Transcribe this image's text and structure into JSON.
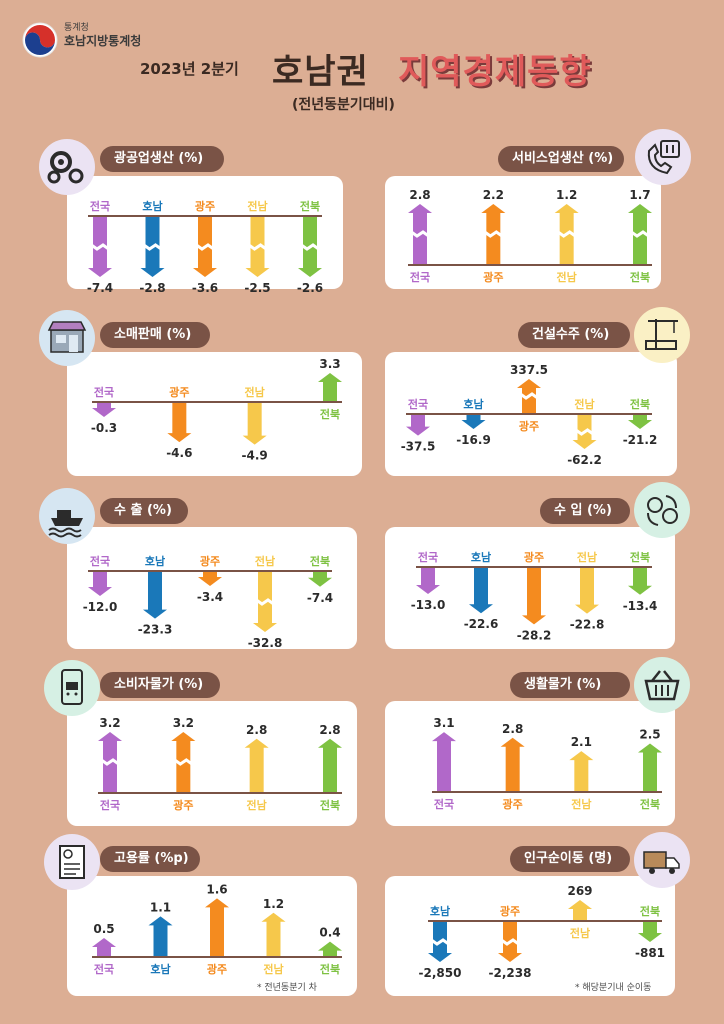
{
  "header": {
    "agency_top": "통계청",
    "agency_name": "호남지방통계청",
    "year_label": "2023년 2분기",
    "title_region": "호남권",
    "title_rest": "지역경제동향",
    "subtitle": "(전년동분기대비)"
  },
  "colors": {
    "전국": "#b168c9",
    "호남": "#1a78b9",
    "광주": "#f48b1f",
    "전남": "#f6c84b",
    "전북": "#7ec242"
  },
  "charts": [
    {
      "id": "mining",
      "title": "광공업생산 (%)",
      "icon": "gears-icon",
      "chart_data": {
        "type": "bar",
        "categories": [
          "전국",
          "호남",
          "광주",
          "전남",
          "전북"
        ],
        "values": [
          -7.4,
          -2.8,
          -3.6,
          -2.5,
          -2.6
        ],
        "labels": [
          "-7.4",
          "-2.8",
          "-3.6",
          "-2.5",
          "-2.6"
        ],
        "title": "광공업생산 (%)"
      }
    },
    {
      "id": "service",
      "title": "서비스업생산 (%)",
      "icon": "phone-restaurant-icon",
      "chart_data": {
        "type": "bar",
        "categories": [
          "전국",
          "광주",
          "전남",
          "전북"
        ],
        "values": [
          2.8,
          2.2,
          1.2,
          1.7
        ],
        "labels": [
          "2.8",
          "2.2",
          "1.2",
          "1.7"
        ],
        "title": "서비스업생산 (%)"
      }
    },
    {
      "id": "retail",
      "title": "소매판매 (%)",
      "icon": "store-icon",
      "chart_data": {
        "type": "bar",
        "categories": [
          "전국",
          "광주",
          "전남",
          "전북"
        ],
        "values": [
          -0.3,
          -4.6,
          -4.9,
          3.3
        ],
        "labels": [
          "-0.3",
          "-4.6",
          "-4.9",
          "3.3"
        ],
        "title": "소매판매 (%)"
      }
    },
    {
      "id": "construction",
      "title": "건설수주 (%)",
      "icon": "crane-icon",
      "chart_data": {
        "type": "bar",
        "categories": [
          "전국",
          "호남",
          "광주",
          "전남",
          "전북"
        ],
        "values": [
          -37.5,
          -16.9,
          337.5,
          -62.2,
          -21.2
        ],
        "labels": [
          "-37.5",
          "-16.9",
          "337.5",
          "-62.2",
          "-21.2"
        ],
        "title": "건설수주 (%)"
      }
    },
    {
      "id": "export",
      "title": "수 출 (%)",
      "icon": "ship-icon",
      "chart_data": {
        "type": "bar",
        "categories": [
          "전국",
          "호남",
          "광주",
          "전남",
          "전북"
        ],
        "values": [
          -12.0,
          -23.3,
          -3.4,
          -32.8,
          -7.4
        ],
        "labels": [
          "-12.0",
          "-23.3",
          "-3.4",
          "-32.8",
          "-7.4"
        ],
        "title": "수 출 (%)"
      }
    },
    {
      "id": "import",
      "title": "수 입 (%)",
      "icon": "money-exchange-icon",
      "chart_data": {
        "type": "bar",
        "categories": [
          "전국",
          "호남",
          "광주",
          "전남",
          "전북"
        ],
        "values": [
          -13.0,
          -22.6,
          -28.2,
          -22.8,
          -13.4
        ],
        "labels": [
          "-13.0",
          "-22.6",
          "-28.2",
          "-22.8",
          "-13.4"
        ],
        "title": "수 입 (%)"
      }
    },
    {
      "id": "cpi",
      "title": "소비자물가 (%)",
      "icon": "mobile-shopping-icon",
      "chart_data": {
        "type": "bar",
        "categories": [
          "전국",
          "광주",
          "전남",
          "전북"
        ],
        "values": [
          3.2,
          3.2,
          2.8,
          2.8
        ],
        "labels": [
          "3.2",
          "3.2",
          "2.8",
          "2.8"
        ],
        "title": "소비자물가 (%)"
      }
    },
    {
      "id": "living",
      "title": "생활물가 (%)",
      "icon": "basket-icon",
      "chart_data": {
        "type": "bar",
        "categories": [
          "전국",
          "광주",
          "전남",
          "전북"
        ],
        "values": [
          3.1,
          2.8,
          2.1,
          2.5
        ],
        "labels": [
          "3.1",
          "2.8",
          "2.1",
          "2.5"
        ],
        "title": "생활물가 (%)"
      }
    },
    {
      "id": "employment",
      "title": "고용률 (%p)",
      "icon": "resume-icon",
      "chart_data": {
        "type": "bar",
        "categories": [
          "전국",
          "호남",
          "광주",
          "전남",
          "전북"
        ],
        "values": [
          0.5,
          1.1,
          1.6,
          1.2,
          0.4
        ],
        "labels": [
          "0.5",
          "1.1",
          "1.6",
          "1.2",
          "0.4"
        ],
        "title": "고용률 (%p)"
      },
      "footnote": "* 전년동분기 차"
    },
    {
      "id": "migration",
      "title": "인구순이동 (명)",
      "icon": "moving-truck-icon",
      "chart_data": {
        "type": "bar",
        "categories": [
          "호남",
          "광주",
          "전남",
          "전북"
        ],
        "values": [
          -2850,
          -2238,
          269,
          -881
        ],
        "labels": [
          "-2,850",
          "-2,238",
          "269",
          "-881"
        ],
        "title": "인구순이동 (명)"
      },
      "footnote": "* 해당분기내 순이동"
    }
  ]
}
